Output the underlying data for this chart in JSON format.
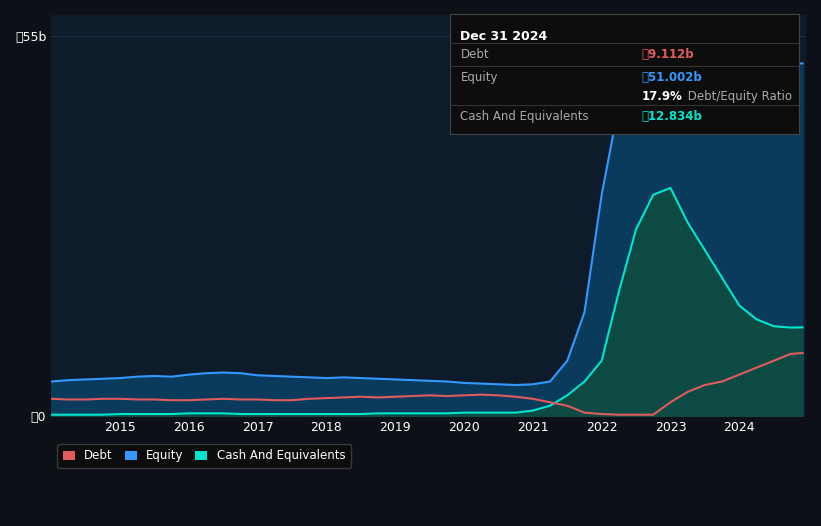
{
  "bg_color": "#0d1117",
  "chart_bg": "#0d1b2a",
  "grid_color": "#1e2d3d",
  "debt_color": "#e05c5c",
  "equity_color": "#3399ff",
  "cash_color": "#00e5cc",
  "equity_fill": "#0a3a5c",
  "cash_fill": "#0d4a44",
  "ylim": [
    0,
    58
  ],
  "ytick_labels": [
    "ว0",
    "ว55b"
  ],
  "ytick_vals": [
    0,
    55
  ],
  "xlabel_years": [
    "2015",
    "2016",
    "2017",
    "2018",
    "2019",
    "2020",
    "2021",
    "2022",
    "2023",
    "2024"
  ],
  "tooltip": {
    "date": "Dec 31 2024",
    "debt_label": "Debt",
    "debt_value": "ว9.112b",
    "equity_label": "Equity",
    "equity_value": "ว51.002b",
    "ratio_bold": "17.9%",
    "ratio_rest": " Debt/Equity Ratio",
    "cash_label": "Cash And Equivalents",
    "cash_value": "ว12.834b"
  },
  "legend_items": [
    {
      "label": "Debt",
      "color": "#e05c5c"
    },
    {
      "label": "Equity",
      "color": "#3399ff"
    },
    {
      "label": "Cash And Equivalents",
      "color": "#00e5cc"
    }
  ],
  "years": [
    2014.0,
    2014.25,
    2014.5,
    2014.75,
    2015.0,
    2015.25,
    2015.5,
    2015.75,
    2016.0,
    2016.25,
    2016.5,
    2016.75,
    2017.0,
    2017.25,
    2017.5,
    2017.75,
    2018.0,
    2018.25,
    2018.5,
    2018.75,
    2019.0,
    2019.25,
    2019.5,
    2019.75,
    2020.0,
    2020.25,
    2020.5,
    2020.75,
    2021.0,
    2021.25,
    2021.5,
    2021.75,
    2022.0,
    2022.25,
    2022.5,
    2022.75,
    2023.0,
    2023.25,
    2023.5,
    2023.75,
    2024.0,
    2024.25,
    2024.5,
    2024.75,
    2024.92
  ],
  "equity": [
    5.0,
    5.2,
    5.3,
    5.4,
    5.5,
    5.7,
    5.8,
    5.7,
    6.0,
    6.2,
    6.3,
    6.2,
    5.9,
    5.8,
    5.7,
    5.6,
    5.5,
    5.6,
    5.5,
    5.4,
    5.3,
    5.2,
    5.1,
    5.0,
    4.8,
    4.7,
    4.6,
    4.5,
    4.6,
    5.0,
    8.0,
    15.0,
    32.0,
    45.0,
    47.0,
    43.0,
    49.0,
    44.0,
    46.0,
    47.0,
    46.0,
    47.0,
    49.0,
    51.0,
    51.002
  ],
  "debt": [
    2.5,
    2.4,
    2.4,
    2.5,
    2.5,
    2.4,
    2.4,
    2.3,
    2.3,
    2.4,
    2.5,
    2.4,
    2.4,
    2.3,
    2.3,
    2.5,
    2.6,
    2.7,
    2.8,
    2.7,
    2.8,
    2.9,
    3.0,
    2.9,
    3.0,
    3.1,
    3.0,
    2.8,
    2.5,
    2.0,
    1.5,
    0.5,
    0.3,
    0.2,
    0.2,
    0.2,
    2.0,
    3.5,
    4.5,
    5.0,
    6.0,
    7.0,
    8.0,
    9.0,
    9.112
  ],
  "cash": [
    0.2,
    0.2,
    0.2,
    0.2,
    0.3,
    0.3,
    0.3,
    0.3,
    0.4,
    0.4,
    0.4,
    0.3,
    0.3,
    0.3,
    0.3,
    0.3,
    0.3,
    0.3,
    0.3,
    0.4,
    0.4,
    0.4,
    0.4,
    0.4,
    0.5,
    0.5,
    0.5,
    0.5,
    0.8,
    1.5,
    3.0,
    5.0,
    8.0,
    18.0,
    27.0,
    32.0,
    33.0,
    28.0,
    24.0,
    20.0,
    16.0,
    14.0,
    13.0,
    12.8,
    12.834
  ]
}
